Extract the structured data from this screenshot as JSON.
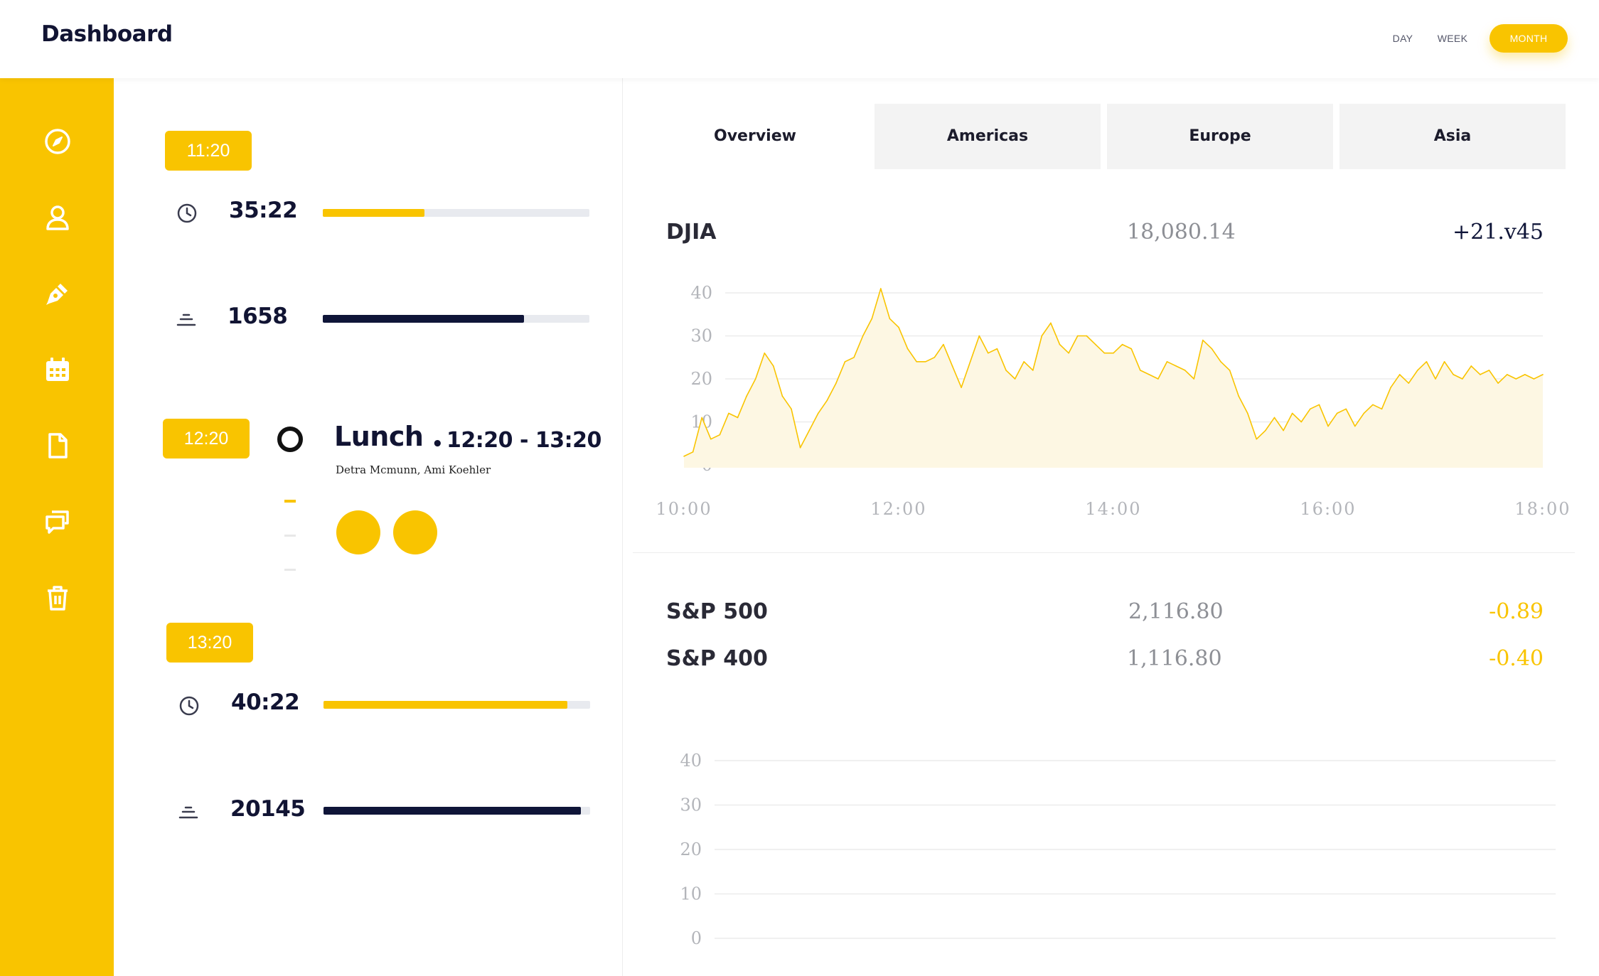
{
  "header": {
    "title": "Dashboard",
    "ranges": {
      "day": "DAY",
      "week": "WEEK",
      "month": "MONTH"
    },
    "active_range": "MONTH"
  },
  "sidebar": {
    "items": [
      {
        "icon": "compass-icon"
      },
      {
        "icon": "user-icon"
      },
      {
        "icon": "pen-icon"
      },
      {
        "icon": "calendar-icon"
      },
      {
        "icon": "document-icon"
      },
      {
        "icon": "chat-icon"
      },
      {
        "icon": "trash-icon"
      }
    ]
  },
  "timeline": {
    "block1": {
      "badge": "11:20",
      "time_value": "35:22",
      "time_progress": 0.38,
      "count_value": "1658",
      "count_progress": 0.755
    },
    "event": {
      "badge": "12:20",
      "title": "Lunch",
      "separator": "•",
      "time": "12:20 - 13:20",
      "people": "Detra Mcmunn, Ami Koehler"
    },
    "block2": {
      "badge": "13:20",
      "time_value": "40:22",
      "time_progress": 0.915,
      "count_value": "20145",
      "count_progress": 0.965
    }
  },
  "tabs": [
    "Overview",
    "Americas",
    "Europe",
    "Asia"
  ],
  "active_tab": "Overview",
  "indices": {
    "djia": {
      "name": "DJIA",
      "value": "18,080.14",
      "change": "+21.v45"
    },
    "sp500": {
      "name": "S&P 500",
      "value": "2,116.80",
      "change": "-0.89"
    },
    "sp400": {
      "name": "S&P 400",
      "value": "1,116.80",
      "change": "-0.40"
    }
  },
  "colors": {
    "accent": "#f9c400",
    "navy": "#0f1538",
    "muted": "#8d8f95"
  },
  "chart_data": [
    {
      "type": "area",
      "title": "",
      "xlabel": "",
      "ylabel": "",
      "x_ticks": [
        "10:00",
        "12:00",
        "14:00",
        "16:00",
        "18:00"
      ],
      "y_ticks": [
        "40",
        "30",
        "20",
        "10",
        "0"
      ],
      "xlim": [
        "10:00",
        "18:00"
      ],
      "ylim": [
        0,
        40
      ],
      "grid": true,
      "series": [
        {
          "x": [
            "10:00",
            "10:05",
            "10:10",
            "10:15",
            "10:20",
            "10:25",
            "10:30",
            "10:35",
            "10:40",
            "10:45",
            "10:50",
            "10:55",
            "11:00",
            "11:05",
            "11:10",
            "11:15",
            "11:20",
            "11:25",
            "11:30",
            "11:35",
            "11:40",
            "11:45",
            "11:50",
            "11:55",
            "12:00",
            "12:05",
            "12:10",
            "12:15",
            "12:20",
            "12:25",
            "12:30",
            "12:35",
            "12:40",
            "12:45",
            "12:50",
            "12:55",
            "13:00",
            "13:05",
            "13:10",
            "13:15",
            "13:20",
            "13:25",
            "13:30",
            "13:35",
            "13:40",
            "13:45",
            "13:50",
            "13:55",
            "14:00",
            "14:05",
            "14:10",
            "14:15",
            "14:20",
            "14:25",
            "14:30",
            "14:35",
            "14:40",
            "14:45",
            "14:50",
            "14:55",
            "15:00",
            "15:05",
            "15:10",
            "15:15",
            "15:20",
            "15:25",
            "15:30",
            "15:35",
            "15:40",
            "15:45",
            "15:50",
            "15:55",
            "16:00",
            "16:05",
            "16:10",
            "16:15",
            "16:20",
            "16:25",
            "16:30",
            "16:35",
            "16:40",
            "16:45",
            "16:50",
            "16:55",
            "17:00",
            "17:05",
            "17:10",
            "17:15",
            "17:20",
            "17:25",
            "17:30",
            "17:35",
            "17:40",
            "17:45",
            "17:50",
            "17:55",
            "18:00"
          ],
          "y": [
            2,
            3,
            11,
            6,
            7,
            12,
            11,
            16,
            20,
            26,
            23,
            16,
            13,
            4,
            8,
            12,
            15,
            19,
            24,
            25,
            30,
            34,
            41,
            34,
            32,
            27,
            24,
            24,
            25,
            28,
            23,
            18,
            24,
            30,
            26,
            27,
            22,
            20,
            24,
            22,
            30,
            33,
            28,
            26,
            30,
            30,
            28,
            26,
            26,
            28,
            27,
            22,
            21,
            20,
            24,
            23,
            22,
            20,
            29,
            27,
            24,
            22,
            16,
            12,
            6,
            8,
            11,
            8,
            12,
            10,
            13,
            14,
            9,
            12,
            13,
            9,
            12,
            14,
            13,
            18,
            21,
            19,
            22,
            24,
            20,
            24,
            21,
            20,
            23,
            21,
            22,
            19,
            21,
            20,
            21,
            20,
            21
          ]
        }
      ]
    },
    {
      "type": "line",
      "title": "",
      "xlabel": "",
      "ylabel": "",
      "y_ticks": [
        "40",
        "30",
        "20",
        "10",
        "0"
      ],
      "ylim": [
        0,
        40
      ],
      "grid": true,
      "series": []
    }
  ]
}
